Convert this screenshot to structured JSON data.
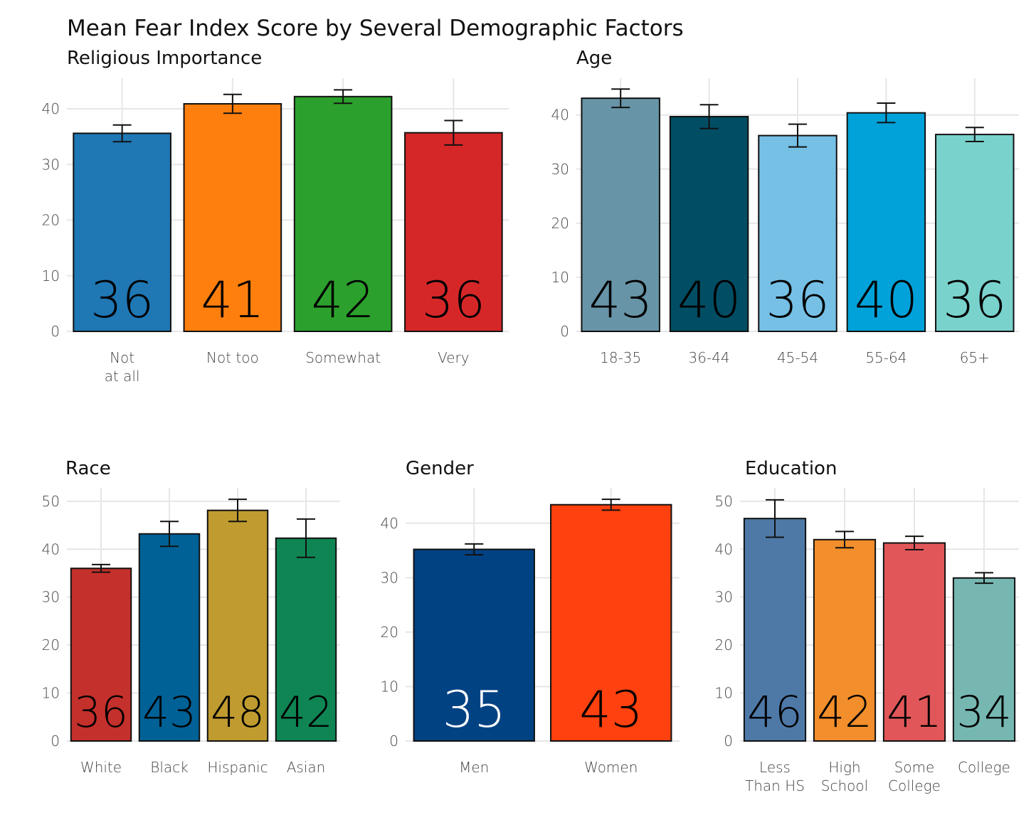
{
  "title": "Mean Fear Index Score by Several Demographic Factors",
  "chart_data": [
    {
      "type": "bar",
      "title": "Religious Importance",
      "categories": [
        "Not\nat all",
        "Not too",
        "Somewhat",
        "Very"
      ],
      "values": [
        35.6,
        40.9,
        42.2,
        35.7
      ],
      "value_labels": [
        "36",
        "41",
        "42",
        "36"
      ],
      "errors": [
        1.5,
        1.7,
        1.2,
        2.2
      ],
      "colors": [
        "#1f77b4",
        "#ff7f0e",
        "#2ca02c",
        "#d62728"
      ],
      "label_colors": [
        "#000000",
        "#000000",
        "#000000",
        "#000000"
      ],
      "ylim": [
        0,
        45.5
      ],
      "yticks": [
        0,
        10,
        20,
        30,
        40
      ],
      "grid": true
    },
    {
      "type": "bar",
      "title": "Age",
      "categories": [
        "18-35",
        "36-44",
        "45-54",
        "55-64",
        "65+"
      ],
      "values": [
        43.1,
        39.7,
        36.2,
        40.4,
        36.4
      ],
      "value_labels": [
        "43",
        "40",
        "36",
        "40",
        "36"
      ],
      "errors": [
        1.7,
        2.2,
        2.1,
        1.8,
        1.3
      ],
      "colors": [
        "#6794a7",
        "#014d64",
        "#76c0e6",
        "#01a2d9",
        "#7ad2cd"
      ],
      "label_colors": [
        "#000000",
        "#000000",
        "#000000",
        "#000000",
        "#000000"
      ],
      "ylim": [
        0,
        46.8
      ],
      "yticks": [
        0,
        10,
        20,
        30,
        40
      ],
      "grid": true
    },
    {
      "type": "bar",
      "title": "Race",
      "categories": [
        "White",
        "Black",
        "Hispanic",
        "Asian"
      ],
      "values": [
        36.0,
        43.2,
        48.1,
        42.3
      ],
      "value_labels": [
        "36",
        "43",
        "48",
        "42"
      ],
      "errors": [
        0.8,
        2.6,
        2.3,
        4.0
      ],
      "colors": [
        "#c4302b",
        "#006197",
        "#bf9b30",
        "#0e8553"
      ],
      "label_colors": [
        "#000000",
        "#000000",
        "#000000",
        "#000000"
      ],
      "ylim": [
        0,
        52.8
      ],
      "yticks": [
        0,
        10,
        20,
        30,
        40,
        50
      ],
      "grid": true
    },
    {
      "type": "bar",
      "title": "Gender",
      "categories": [
        "Men",
        "Women"
      ],
      "values": [
        35.2,
        43.4
      ],
      "value_labels": [
        "35",
        "43"
      ],
      "errors": [
        1.0,
        1.0
      ],
      "colors": [
        "#014283",
        "#fe410f"
      ],
      "label_colors": [
        "#ffffff",
        "#000000"
      ],
      "ylim": [
        0,
        46.5
      ],
      "yticks": [
        0,
        10,
        20,
        30,
        40
      ],
      "grid": true
    },
    {
      "type": "bar",
      "title": "Education",
      "categories": [
        "Less\nThan HS",
        "High\nSchool",
        "Some\nCollege",
        "College"
      ],
      "values": [
        46.4,
        42.0,
        41.3,
        34.0
      ],
      "value_labels": [
        "46",
        "42",
        "41",
        "34"
      ],
      "errors": [
        3.9,
        1.7,
        1.4,
        1.1
      ],
      "colors": [
        "#4e79a7",
        "#f28e2b",
        "#e15759",
        "#76b7b2"
      ],
      "label_colors": [
        "#000000",
        "#000000",
        "#000000",
        "#000000"
      ],
      "ylim": [
        0,
        52.8
      ],
      "yticks": [
        0,
        10,
        20,
        30,
        40,
        50
      ],
      "grid": true
    }
  ]
}
